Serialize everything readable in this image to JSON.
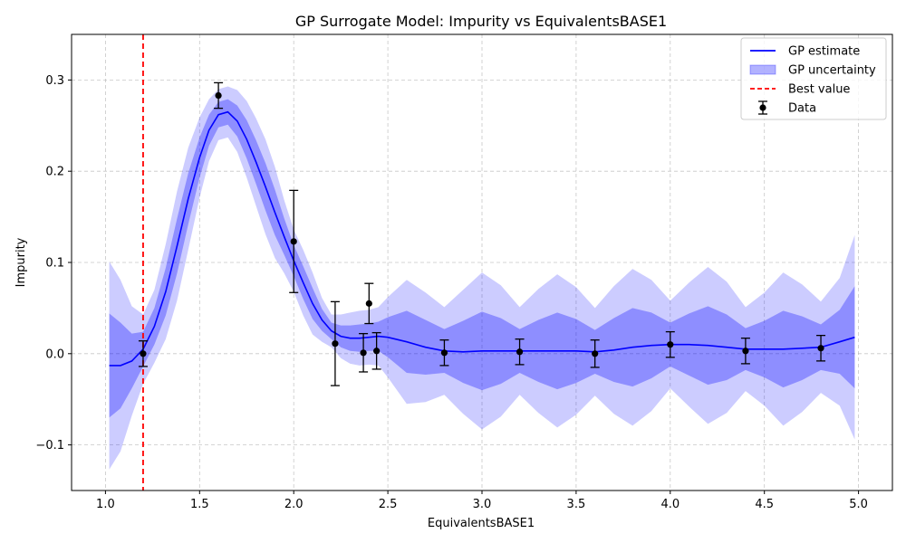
{
  "chart_data": {
    "type": "line",
    "title": "GP Surrogate Model: Impurity vs EquivalentsBASE1",
    "xlabel": "EquivalentsBASE1",
    "ylabel": "Impurity",
    "xlim": [
      0.82,
      5.18
    ],
    "ylim": [
      -0.15,
      0.35
    ],
    "xticks": [
      1.0,
      1.5,
      2.0,
      2.5,
      3.0,
      3.5,
      4.0,
      4.5,
      5.0
    ],
    "xtick_labels": [
      "1.0",
      "1.5",
      "2.0",
      "2.5",
      "3.0",
      "3.5",
      "4.0",
      "4.5",
      "5.0"
    ],
    "yticks": [
      -0.1,
      0.0,
      0.1,
      0.2,
      0.3
    ],
    "ytick_labels": [
      "−0.1",
      "0.0",
      "0.1",
      "0.2",
      "0.3"
    ],
    "grid": true,
    "legend_position": "top-right",
    "best_value": 1.2,
    "gp_x": [
      1.02,
      1.08,
      1.14,
      1.2,
      1.26,
      1.32,
      1.38,
      1.44,
      1.5,
      1.55,
      1.6,
      1.65,
      1.7,
      1.75,
      1.8,
      1.85,
      1.9,
      1.95,
      2.0,
      2.05,
      2.1,
      2.15,
      2.2,
      2.25,
      2.3,
      2.35,
      2.4,
      2.45,
      2.5,
      2.6,
      2.7,
      2.8,
      2.9,
      3.0,
      3.1,
      3.2,
      3.3,
      3.4,
      3.5,
      3.6,
      3.7,
      3.8,
      3.9,
      4.0,
      4.1,
      4.2,
      4.3,
      4.4,
      4.5,
      4.6,
      4.7,
      4.8,
      4.9,
      4.98
    ],
    "gp_mean": [
      -0.013,
      -0.013,
      -0.008,
      0.005,
      0.03,
      0.068,
      0.118,
      0.17,
      0.215,
      0.245,
      0.262,
      0.265,
      0.255,
      0.235,
      0.21,
      0.183,
      0.155,
      0.128,
      0.102,
      0.078,
      0.055,
      0.037,
      0.025,
      0.019,
      0.017,
      0.017,
      0.018,
      0.019,
      0.018,
      0.013,
      0.007,
      0.003,
      0.002,
      0.003,
      0.003,
      0.003,
      0.003,
      0.003,
      0.003,
      0.002,
      0.004,
      0.007,
      0.009,
      0.01,
      0.01,
      0.009,
      0.007,
      0.005,
      0.005,
      0.005,
      0.006,
      0.007,
      0.013,
      0.018
    ],
    "gp_std": [
      0.057,
      0.047,
      0.03,
      0.019,
      0.02,
      0.026,
      0.03,
      0.028,
      0.022,
      0.017,
      0.014,
      0.014,
      0.017,
      0.021,
      0.024,
      0.026,
      0.025,
      0.02,
      0.017,
      0.018,
      0.017,
      0.012,
      0.009,
      0.012,
      0.014,
      0.015,
      0.015,
      0.016,
      0.022,
      0.034,
      0.03,
      0.024,
      0.034,
      0.043,
      0.036,
      0.024,
      0.034,
      0.042,
      0.035,
      0.024,
      0.035,
      0.043,
      0.036,
      0.024,
      0.034,
      0.043,
      0.036,
      0.023,
      0.031,
      0.042,
      0.035,
      0.025,
      0.035,
      0.056
    ],
    "data_points": [
      {
        "x": 1.2,
        "y": 0.0,
        "err": 0.014
      },
      {
        "x": 1.6,
        "y": 0.283,
        "err": 0.014
      },
      {
        "x": 2.0,
        "y": 0.123,
        "err": 0.056
      },
      {
        "x": 2.22,
        "y": 0.011,
        "err": 0.046
      },
      {
        "x": 2.37,
        "y": 0.001,
        "err": 0.021
      },
      {
        "x": 2.4,
        "y": 0.055,
        "err": 0.022
      },
      {
        "x": 2.44,
        "y": 0.003,
        "err": 0.02
      },
      {
        "x": 2.8,
        "y": 0.001,
        "err": 0.014
      },
      {
        "x": 3.2,
        "y": 0.002,
        "err": 0.014
      },
      {
        "x": 3.6,
        "y": 0.0,
        "err": 0.015
      },
      {
        "x": 4.0,
        "y": 0.01,
        "err": 0.014
      },
      {
        "x": 4.4,
        "y": 0.003,
        "err": 0.014
      },
      {
        "x": 4.8,
        "y": 0.006,
        "err": 0.014
      }
    ],
    "legend": [
      {
        "label": "GP estimate",
        "kind": "line",
        "color": "#0000ff"
      },
      {
        "label": "GP uncertainty",
        "kind": "patch",
        "color": "#0000ff"
      },
      {
        "label": "Best value",
        "kind": "dashed",
        "color": "#ff0000"
      },
      {
        "label": "Data",
        "kind": "errorbar",
        "color": "#000000"
      }
    ],
    "colors": {
      "mean": "#0000ff",
      "band_inner": "#0000ff",
      "band_outer": "#0000ff",
      "best": "#ff0000",
      "data": "#000000",
      "grid": "#b0b0b0"
    }
  }
}
